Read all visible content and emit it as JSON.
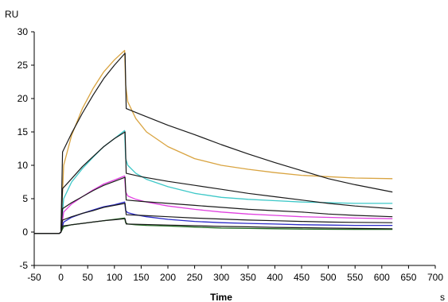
{
  "chart_data": {
    "type": "line",
    "xlabel": "Time",
    "ylabel": "RU",
    "x_unit": "s",
    "xlim": [
      -50,
      700
    ],
    "ylim": [
      -5,
      30
    ],
    "x_ticks": [
      -50,
      0,
      50,
      100,
      150,
      200,
      250,
      300,
      350,
      400,
      450,
      500,
      550,
      600,
      650,
      700
    ],
    "y_ticks": [
      -5,
      0,
      5,
      10,
      15,
      20,
      25,
      30
    ],
    "x_tick_labels": [
      "-50",
      "0",
      "50",
      "100",
      "150",
      "200",
      "250",
      "300",
      "350",
      "400",
      "450",
      "500",
      "550",
      "600",
      "650",
      "700"
    ],
    "y_tick_labels": [
      "-5",
      "0",
      "5",
      "10",
      "15",
      "20",
      "25",
      "30"
    ],
    "grid": false,
    "legend": "none",
    "series": [
      {
        "color": "#d9a441",
        "kind": "data",
        "x": [
          -50,
          -3,
          0,
          5,
          20,
          40,
          60,
          80,
          100,
          119,
          121,
          125,
          140,
          160,
          200,
          250,
          300,
          350,
          400,
          450,
          500,
          550,
          620
        ],
        "y": [
          -0.2,
          -0.2,
          0,
          10,
          14.5,
          18.5,
          21.5,
          24,
          25.8,
          27.2,
          22,
          19.5,
          17,
          15,
          12.8,
          11,
          10,
          9.4,
          8.9,
          8.5,
          8.3,
          8.1,
          8.0
        ]
      },
      {
        "color": "#1a1a1a",
        "kind": "fit",
        "x": [
          -50,
          -3,
          0,
          3,
          20,
          40,
          60,
          80,
          100,
          120,
          122,
          150,
          200,
          250,
          300,
          350,
          400,
          450,
          500,
          550,
          620
        ],
        "y": [
          -0.2,
          -0.2,
          0,
          12,
          14.8,
          17.8,
          20.5,
          23,
          25,
          26.8,
          18.5,
          17.6,
          16,
          14.6,
          13.1,
          11.7,
          10.4,
          9.2,
          8,
          7.1,
          6.0
        ]
      },
      {
        "color": "#3ec8c8",
        "kind": "data",
        "x": [
          -50,
          -3,
          0,
          5,
          20,
          40,
          60,
          80,
          100,
          119,
          121,
          125,
          140,
          160,
          200,
          250,
          300,
          350,
          400,
          450,
          500,
          550,
          620
        ],
        "y": [
          -0.2,
          -0.2,
          0,
          5,
          7.5,
          9.5,
          11.2,
          12.8,
          14,
          15.2,
          11,
          10,
          8.8,
          7.9,
          6.8,
          5.8,
          5.2,
          4.9,
          4.7,
          4.5,
          4.4,
          4.3,
          4.3
        ]
      },
      {
        "color": "#1a1a1a",
        "kind": "fit",
        "x": [
          -50,
          -3,
          0,
          3,
          20,
          40,
          60,
          80,
          100,
          120,
          122,
          150,
          200,
          250,
          300,
          350,
          400,
          450,
          500,
          550,
          620
        ],
        "y": [
          -0.2,
          -0.2,
          0,
          6.5,
          8,
          9.8,
          11.3,
          12.8,
          14,
          15,
          8.8,
          8.3,
          7.6,
          7,
          6.4,
          5.8,
          5.3,
          4.8,
          4.3,
          3.9,
          3.5
        ]
      },
      {
        "color": "#e040e0",
        "kind": "data",
        "x": [
          -50,
          -3,
          0,
          5,
          20,
          40,
          60,
          80,
          100,
          119,
          121,
          125,
          140,
          160,
          200,
          250,
          300,
          350,
          400,
          450,
          500,
          550,
          620
        ],
        "y": [
          -0.2,
          -0.2,
          0,
          3,
          4.2,
          5.3,
          6.3,
          7.2,
          7.8,
          8.4,
          6,
          5.4,
          4.9,
          4.5,
          3.9,
          3.4,
          3,
          2.7,
          2.5,
          2.3,
          2.2,
          2.1,
          2.0
        ]
      },
      {
        "color": "#1a1a1a",
        "kind": "fit",
        "x": [
          -50,
          -3,
          0,
          3,
          20,
          40,
          60,
          80,
          100,
          120,
          122,
          150,
          200,
          250,
          300,
          350,
          400,
          450,
          500,
          550,
          620
        ],
        "y": [
          -0.2,
          -0.2,
          0,
          3.5,
          4.4,
          5.3,
          6.2,
          7,
          7.6,
          8.2,
          4.8,
          4.6,
          4.3,
          4,
          3.7,
          3.4,
          3.2,
          3,
          2.7,
          2.5,
          2.3
        ]
      },
      {
        "color": "#2a2ac8",
        "kind": "data",
        "x": [
          -50,
          -3,
          0,
          5,
          20,
          40,
          60,
          80,
          100,
          119,
          121,
          125,
          140,
          160,
          200,
          250,
          300,
          350,
          400,
          450,
          500,
          550,
          620
        ],
        "y": [
          -0.2,
          -0.2,
          0,
          1.5,
          2.2,
          2.8,
          3.3,
          3.8,
          4.1,
          4.5,
          3.2,
          2.9,
          2.6,
          2.3,
          1.9,
          1.6,
          1.4,
          1.3,
          1.2,
          1.1,
          1.05,
          1.0,
          1.0
        ]
      },
      {
        "color": "#1a1a1a",
        "kind": "fit",
        "x": [
          -50,
          -3,
          0,
          3,
          20,
          40,
          60,
          80,
          100,
          120,
          122,
          150,
          200,
          250,
          300,
          350,
          400,
          450,
          500,
          550,
          620
        ],
        "y": [
          -0.2,
          -0.2,
          0,
          1.8,
          2.3,
          2.8,
          3.2,
          3.7,
          4,
          4.3,
          2.6,
          2.5,
          2.3,
          2.1,
          1.95,
          1.8,
          1.7,
          1.6,
          1.5,
          1.45,
          1.4
        ]
      },
      {
        "color": "#1f6b1f",
        "kind": "data",
        "x": [
          -50,
          -3,
          0,
          5,
          20,
          40,
          60,
          80,
          100,
          119,
          121,
          125,
          140,
          160,
          200,
          250,
          300,
          350,
          400,
          450,
          500,
          550,
          620
        ],
        "y": [
          -0.2,
          -0.2,
          0,
          0.8,
          1.1,
          1.3,
          1.5,
          1.7,
          1.9,
          2.1,
          1.4,
          1.2,
          1.1,
          1.0,
          0.9,
          0.75,
          0.6,
          0.55,
          0.5,
          0.45,
          0.42,
          0.4,
          0.4
        ]
      },
      {
        "color": "#1a1a1a",
        "kind": "fit",
        "x": [
          -50,
          -3,
          0,
          3,
          20,
          40,
          60,
          80,
          100,
          120,
          122,
          150,
          200,
          250,
          300,
          350,
          400,
          450,
          500,
          550,
          620
        ],
        "y": [
          -0.2,
          -0.2,
          0,
          0.9,
          1.1,
          1.3,
          1.5,
          1.7,
          1.85,
          2.0,
          1.2,
          1.15,
          1.05,
          0.95,
          0.85,
          0.78,
          0.7,
          0.65,
          0.6,
          0.55,
          0.5
        ]
      }
    ]
  }
}
